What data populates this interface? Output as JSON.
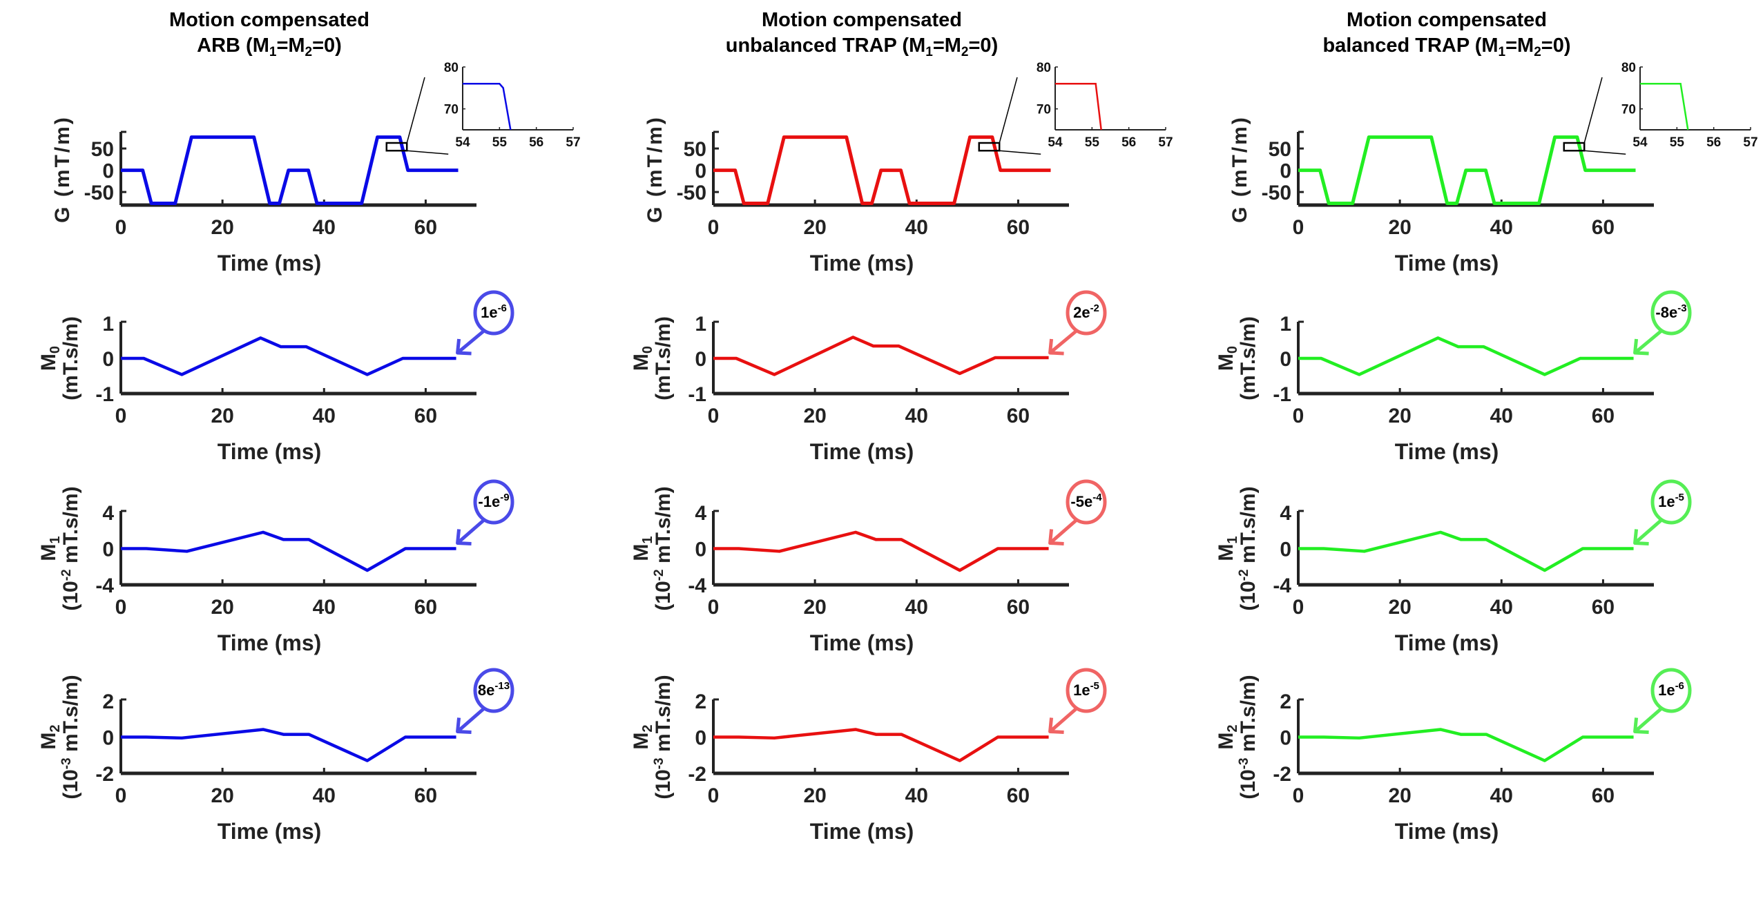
{
  "chart_data": {
    "type": "line",
    "layout": "4 rows x 3 columns of line plots",
    "xlabel": "Time (ms)",
    "xlim": [
      0,
      70
    ],
    "xticks": [
      0,
      20,
      40,
      60
    ],
    "rows": [
      {
        "id": "G",
        "ylabel_main": "G (mT/m)",
        "ylabel_sub": "",
        "ylim": [
          -80,
          85
        ],
        "yticks": [
          -50,
          0,
          50
        ],
        "ytick_labels": [
          "-50",
          "0",
          "50"
        ]
      },
      {
        "id": "M0",
        "ylabel_main": "M0",
        "ylabel_sub": "(mT.s/m)",
        "ylim": [
          -1,
          1
        ],
        "yticks": [
          -1,
          0,
          1
        ],
        "ytick_labels": [
          "-1",
          "0",
          "1"
        ]
      },
      {
        "id": "M1",
        "ylabel_main": "M1",
        "ylabel_sub": "(10^-2 mT.s/m)",
        "ylim": [
          -4,
          4
        ],
        "yticks": [
          -4,
          0,
          4
        ],
        "ytick_labels": [
          "-4",
          "0",
          "4"
        ]
      },
      {
        "id": "M2",
        "ylabel_main": "M2",
        "ylabel_sub": "(10^-3 mT.s/m)",
        "ylim": [
          -2,
          2
        ],
        "yticks": [
          -2,
          0,
          2
        ],
        "ytick_labels": [
          "-2",
          "0",
          "2"
        ]
      }
    ],
    "columns": [
      {
        "title_line1": "Motion compensated",
        "title_line2_prefix": "ARB (M",
        "title_line2_suffix": "=M",
        "title_line2_end": "=0)",
        "color": "#0a0ae6",
        "callout_color": "#4a4ae8",
        "G": {
          "t": [
            0,
            4.3,
            6.0,
            10.7,
            13.9,
            26.2,
            29.3,
            31.2,
            33.0,
            36.9,
            38.6,
            47.4,
            50.5,
            54.9,
            56.5,
            66.4
          ],
          "y": [
            0,
            0,
            -76,
            -76,
            76,
            76,
            -76,
            -76,
            0,
            0,
            -76,
            -76,
            76,
            76,
            0,
            0
          ]
        },
        "M0": {
          "t": [
            0,
            4.5,
            12,
            27.5,
            31.5,
            36.5,
            48.5,
            55.5,
            66
          ],
          "y": [
            0,
            0,
            -0.46,
            0.58,
            0.33,
            0.33,
            -0.46,
            0,
            0
          ]
        },
        "M1": {
          "t": [
            0,
            5,
            13,
            28,
            32,
            37,
            48.5,
            56,
            66
          ],
          "y": [
            0,
            0,
            -0.3,
            1.8,
            1.0,
            1.0,
            -2.4,
            0,
            0
          ]
        },
        "M2": {
          "t": [
            0,
            5,
            12,
            28,
            32,
            37,
            48.5,
            56,
            66
          ],
          "y": [
            0,
            0,
            -0.05,
            0.42,
            0.15,
            0.15,
            -1.3,
            0,
            0
          ]
        },
        "callouts": {
          "M0": {
            "base": "1e",
            "exp": "-6"
          },
          "M1": {
            "base": "-1e",
            "exp": "-9"
          },
          "M2": {
            "base": "8e",
            "exp": "-13"
          }
        },
        "inset": {
          "xlim": [
            54,
            57
          ],
          "ylim": [
            65,
            80
          ],
          "xticks": [
            "54",
            "55",
            "56",
            "57"
          ],
          "yticks": [
            "70",
            "80"
          ],
          "t": [
            54,
            55.0,
            55.1,
            55.3
          ],
          "y": [
            76,
            76,
            75,
            65
          ]
        }
      },
      {
        "title_line1": "Motion compensated",
        "title_line2_prefix": "unbalanced TRAP (M",
        "title_line2_suffix": "=M",
        "title_line2_end": "=0)",
        "color": "#e81010",
        "callout_color": "#f06464",
        "G": {
          "t": [
            0,
            4.3,
            6.0,
            10.7,
            13.9,
            26.2,
            29.3,
            31.2,
            33.0,
            36.9,
            38.6,
            47.4,
            50.5,
            54.9,
            56.5,
            66.4
          ],
          "y": [
            0,
            0,
            -76,
            -76,
            76,
            76,
            -76,
            -76,
            0,
            0,
            -76,
            -76,
            76,
            76,
            0,
            0
          ]
        },
        "M0": {
          "t": [
            0,
            4.5,
            12,
            27.5,
            31.5,
            36.5,
            48.5,
            55.5,
            66
          ],
          "y": [
            0,
            0,
            -0.46,
            0.6,
            0.35,
            0.35,
            -0.43,
            0.02,
            0.02
          ]
        },
        "M1": {
          "t": [
            0,
            5,
            13,
            28,
            32,
            37,
            48.5,
            56,
            66
          ],
          "y": [
            0,
            0,
            -0.3,
            1.8,
            1.0,
            1.0,
            -2.4,
            0,
            0
          ]
        },
        "M2": {
          "t": [
            0,
            5,
            12,
            28,
            32,
            37,
            48.5,
            56,
            66
          ],
          "y": [
            0,
            0,
            -0.05,
            0.42,
            0.15,
            0.15,
            -1.3,
            0,
            0
          ]
        },
        "callouts": {
          "M0": {
            "base": "2e",
            "exp": "-2"
          },
          "M1": {
            "base": "-5e",
            "exp": "-4"
          },
          "M2": {
            "base": "1e",
            "exp": "-5"
          }
        },
        "inset": {
          "xlim": [
            54,
            57
          ],
          "ylim": [
            65,
            80
          ],
          "xticks": [
            "54",
            "55",
            "56",
            "57"
          ],
          "yticks": [
            "70",
            "80"
          ],
          "t": [
            54,
            55.1,
            55.25
          ],
          "y": [
            76,
            76,
            65
          ]
        }
      },
      {
        "title_line1": "Motion compensated",
        "title_line2_prefix": "balanced TRAP (M",
        "title_line2_suffix": "=M",
        "title_line2_end": "=0)",
        "color": "#22ee22",
        "callout_color": "#55ee55",
        "G": {
          "t": [
            0,
            4.3,
            6.0,
            10.7,
            13.9,
            26.2,
            29.3,
            31.2,
            33.0,
            36.9,
            38.6,
            47.4,
            50.5,
            54.9,
            56.5,
            66.4
          ],
          "y": [
            0,
            0,
            -76,
            -76,
            76,
            76,
            -76,
            -76,
            0,
            0,
            -76,
            -76,
            76,
            76,
            0,
            0
          ]
        },
        "M0": {
          "t": [
            0,
            4.5,
            12,
            27.5,
            31.5,
            36.5,
            48.5,
            55.5,
            66
          ],
          "y": [
            0,
            0,
            -0.46,
            0.58,
            0.33,
            0.33,
            -0.46,
            0,
            0
          ]
        },
        "M1": {
          "t": [
            0,
            5,
            13,
            28,
            32,
            37,
            48.5,
            56,
            66
          ],
          "y": [
            0,
            0,
            -0.3,
            1.8,
            1.0,
            1.0,
            -2.4,
            0,
            0
          ]
        },
        "M2": {
          "t": [
            0,
            5,
            12,
            28,
            32,
            37,
            48.5,
            56,
            66
          ],
          "y": [
            0,
            0,
            -0.05,
            0.42,
            0.15,
            0.15,
            -1.3,
            0,
            0
          ]
        },
        "callouts": {
          "M0": {
            "base": "-8e",
            "exp": "-3"
          },
          "M1": {
            "base": "1e",
            "exp": "-5"
          },
          "M2": {
            "base": "1e",
            "exp": "-6"
          }
        },
        "inset": {
          "xlim": [
            54,
            57
          ],
          "ylim": [
            65,
            80
          ],
          "xticks": [
            "54",
            "55",
            "56",
            "57"
          ],
          "yticks": [
            "70",
            "80"
          ],
          "t": [
            54,
            55.1,
            55.3
          ],
          "y": [
            76,
            76,
            65
          ]
        }
      }
    ],
    "subscripts": {
      "m1": "1",
      "m2": "2",
      "m0": "0"
    }
  }
}
